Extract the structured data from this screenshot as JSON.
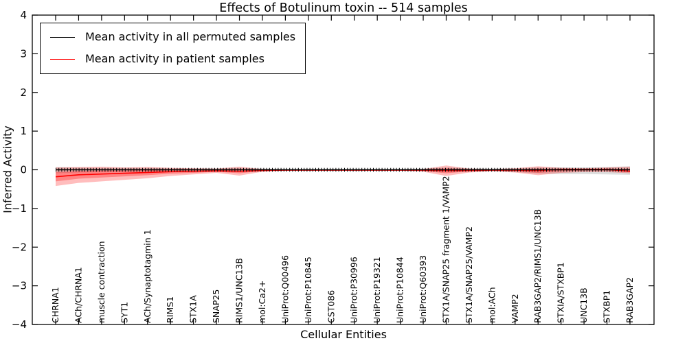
{
  "figure": {
    "title": "Effects of Botulinum toxin -- 514 samples",
    "xlabel": "Cellular Entities",
    "ylabel": "Inferred Activity"
  },
  "legend": {
    "items": [
      {
        "label": "Mean activity in all permuted samples",
        "color": "#000000"
      },
      {
        "label": "Mean activity in patient samples",
        "color": "#ff0000"
      }
    ]
  },
  "colors": {
    "axis": "#000000",
    "permuted_line": "#000000",
    "patient_line": "#ff0000",
    "permuted_band": "rgba(0,0,0,0.13)",
    "patient_band_outer": "rgba(255,0,0,0.26)",
    "patient_band_inner": "rgba(255,0,0,0.30)"
  },
  "chart_data": {
    "type": "line",
    "title": "Effects of Botulinum toxin -- 514 samples",
    "xlabel": "Cellular Entities",
    "ylabel": "Inferred Activity",
    "ylim": [
      -4,
      4
    ],
    "yticks": [
      -4,
      -3,
      -2,
      -1,
      0,
      1,
      2,
      3,
      4
    ],
    "grid": false,
    "legend_position": "upper left",
    "categories": [
      "CHRNA1",
      "ACh/CHRNA1",
      "muscle contraction",
      "SYT1",
      "ACh/Synaptotagmin 1",
      "RIMS1",
      "STX1A",
      "SNAP25",
      "RIMS1/UNC13B",
      "mol:Ca2+",
      "UniProt:Q00496",
      "UniProt:P10845",
      "CST086",
      "UniProt:P30996",
      "UniProt:P19321",
      "UniProt:P10844",
      "UniProt:Q60393",
      "STX1A/SNAP25 fragment 1/VAMP2",
      "STX1A/SNAP25/VAMP2",
      "mol:ACh",
      "VAMP2",
      "RAB3GAP2/RIMS1/UNC13B",
      "STXIA/STXBP1",
      "UNC13B",
      "STXBP1",
      "RAB3GAP2"
    ],
    "series": [
      {
        "name": "Mean activity in all permuted samples",
        "color": "#000000",
        "marker": "vertical-tick",
        "values": [
          0,
          0,
          0,
          0,
          0,
          0,
          0,
          0,
          0,
          0,
          0,
          0,
          0,
          0,
          0,
          0,
          0,
          0,
          0,
          0,
          0,
          0,
          0,
          0,
          0,
          0
        ]
      },
      {
        "name": "Mean activity in patient samples",
        "color": "#ff0000",
        "marker": "none",
        "values": [
          -0.18,
          -0.13,
          -0.11,
          -0.09,
          -0.07,
          -0.05,
          -0.04,
          -0.03,
          -0.04,
          -0.02,
          -0.01,
          -0.01,
          -0.01,
          -0.01,
          -0.01,
          -0.01,
          -0.01,
          -0.02,
          -0.02,
          -0.01,
          -0.01,
          -0.02,
          0.01,
          0.01,
          0.01,
          -0.04
        ]
      }
    ],
    "bands": [
      {
        "name": "permuted-samples-range",
        "color": "rgba(0,0,0,0.13)",
        "upper": [
          0.07,
          0.06,
          0.05,
          0.05,
          0.05,
          0.04,
          0.04,
          0.04,
          0.05,
          0.03,
          0.02,
          0.02,
          0.02,
          0.02,
          0.02,
          0.02,
          0.03,
          0.06,
          0.04,
          0.03,
          0.04,
          0.06,
          0.06,
          0.06,
          0.07,
          0.09
        ],
        "lower": [
          -0.09,
          -0.07,
          -0.06,
          -0.06,
          -0.05,
          -0.04,
          -0.04,
          -0.04,
          -0.05,
          -0.03,
          -0.02,
          -0.02,
          -0.02,
          -0.02,
          -0.02,
          -0.02,
          -0.03,
          -0.06,
          -0.04,
          -0.03,
          -0.06,
          -0.1,
          -0.11,
          -0.11,
          -0.12,
          -0.13
        ]
      },
      {
        "name": "patient-samples-range-outer",
        "color": "rgba(255,0,0,0.26)",
        "upper": [
          0.06,
          0.07,
          0.08,
          0.06,
          0.07,
          0.05,
          0.04,
          0.03,
          0.08,
          0.02,
          0.01,
          0.01,
          0.01,
          0.01,
          0.01,
          0.01,
          0.02,
          0.11,
          0.03,
          0.02,
          0.04,
          0.09,
          0.05,
          0.04,
          0.06,
          0.08
        ],
        "lower": [
          -0.42,
          -0.34,
          -0.3,
          -0.26,
          -0.22,
          -0.16,
          -0.12,
          -0.08,
          -0.15,
          -0.05,
          -0.02,
          -0.02,
          -0.02,
          -0.02,
          -0.02,
          -0.02,
          -0.05,
          -0.16,
          -0.07,
          -0.04,
          -0.07,
          -0.14,
          -0.08,
          -0.06,
          -0.06,
          -0.09
        ]
      },
      {
        "name": "patient-samples-range-inner",
        "color": "rgba(255,0,0,0.30)",
        "upper": [
          -0.06,
          -0.03,
          -0.02,
          -0.02,
          -0.01,
          -0.01,
          0.0,
          0.0,
          0.02,
          0.0,
          0.0,
          0.0,
          0.0,
          0.0,
          0.0,
          0.0,
          0.01,
          0.04,
          0.01,
          0.0,
          0.01,
          0.03,
          0.02,
          0.02,
          0.03,
          0.02
        ],
        "lower": [
          -0.3,
          -0.23,
          -0.2,
          -0.17,
          -0.14,
          -0.1,
          -0.08,
          -0.05,
          -0.09,
          -0.03,
          -0.01,
          -0.01,
          -0.01,
          -0.01,
          -0.01,
          -0.01,
          -0.03,
          -0.09,
          -0.04,
          -0.02,
          -0.04,
          -0.08,
          -0.04,
          -0.02,
          -0.02,
          -0.06
        ]
      }
    ]
  }
}
